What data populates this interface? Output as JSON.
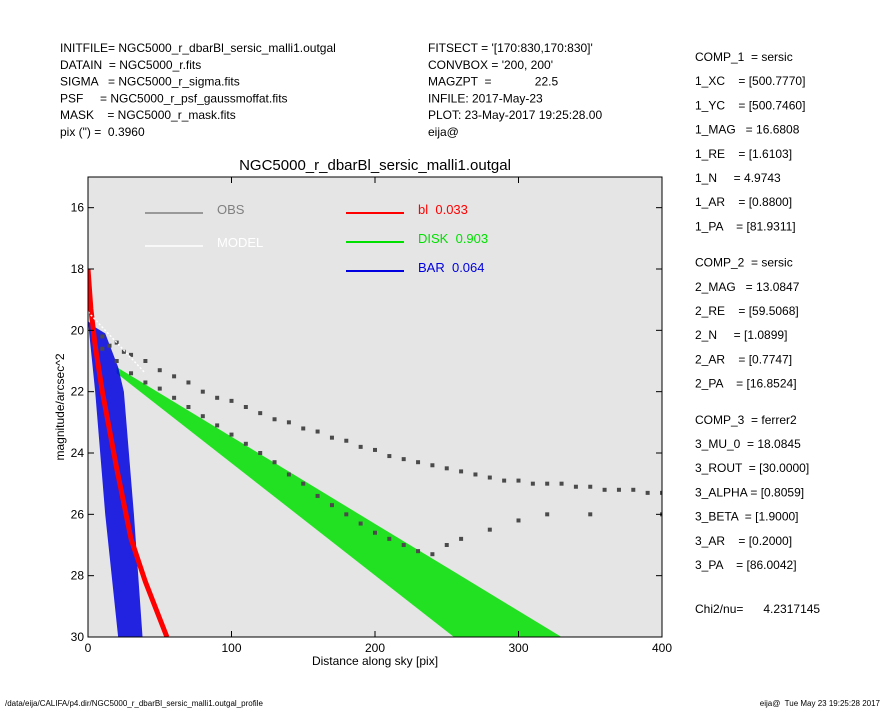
{
  "header_left": [
    "INITFILE= NGC5000_r_dbarBl_sersic_malli1.outgal",
    "DATAIN  = NGC5000_r.fits",
    "SIGMA   = NGC5000_r_sigma.fits",
    "PSF     = NGC5000_r_psf_gaussmoffat.fits",
    "MASK    = NGC5000_r_mask.fits",
    "pix (\") =  0.3960"
  ],
  "header_middle": [
    "FITSECT = '[170:830,170:830]'",
    "CONVBOX = '200, 200'",
    "MAGZPT  =             22.5",
    "INFILE: 2017-May-23",
    "PLOT: 23-May-2017 19:25:28.00",
    "eija@"
  ],
  "components": [
    [
      "COMP_1  = sersic",
      "1_XC    = [500.7770]",
      "1_YC    = [500.7460]",
      "1_MAG   = 16.6808",
      "1_RE    = [1.6103]",
      "1_N     = 4.9743",
      "1_AR    = [0.8800]",
      "1_PA    = [81.9311]"
    ],
    [
      "COMP_2  = sersic",
      "2_MAG   = 13.0847",
      "2_RE    = [59.5068]",
      "2_N     = [1.0899]",
      "2_AR    = [0.7747]",
      "2_PA    = [16.8524]"
    ],
    [
      "COMP_3  = ferrer2",
      "3_MU_0  = 18.0845",
      "3_ROUT  = [30.0000]",
      "3_ALPHA = [0.8059]",
      "3_BETA  = [1.9000]",
      "3_AR    = [0.2000]",
      "3_PA    = [86.0042]"
    ]
  ],
  "chi2": "Chi2/nu=      4.2317145",
  "footer_left": "/data/eija/CALIFA/p4.dir/NGC5000_r_dbarBl_sersic_malli1.outgal_profile",
  "footer_right": "eija@  Tue May 23 19:25:28 2017",
  "chart_data": {
    "type": "scatter",
    "title": "NGC5000_r_dbarBl_sersic_malli1.outgal",
    "xlabel": "Distance along sky [pix]",
    "ylabel": "magnitude/arcsec^2",
    "xlim": [
      0,
      400
    ],
    "ylim": [
      15,
      30
    ],
    "y_inverted": true,
    "xticks": [
      0,
      100,
      200,
      300,
      400
    ],
    "yticks": [
      16,
      18,
      20,
      22,
      24,
      26,
      28,
      30
    ],
    "background": "#e5e5e5",
    "observed": {
      "name": "OBS",
      "color": "#808080",
      "point_color": "#4a4a4a",
      "x": [
        10,
        10,
        15,
        20,
        20,
        25,
        30,
        30,
        40,
        40,
        50,
        50,
        60,
        60,
        70,
        70,
        80,
        80,
        90,
        90,
        100,
        100,
        110,
        110,
        120,
        120,
        130,
        130,
        140,
        140,
        150,
        150,
        160,
        160,
        170,
        170,
        180,
        180,
        190,
        190,
        200,
        200,
        210,
        210,
        220,
        220,
        230,
        230,
        240,
        240,
        250,
        250,
        260,
        260,
        270,
        280,
        280,
        290,
        300,
        300,
        310,
        320,
        320,
        330,
        340,
        350,
        350,
        360,
        370,
        380,
        390,
        400,
        400
      ],
      "values": [
        20.2,
        20.6,
        20.5,
        20.4,
        21.0,
        20.7,
        20.8,
        21.4,
        21.0,
        21.7,
        21.3,
        21.9,
        21.5,
        22.2,
        21.7,
        22.5,
        22.0,
        22.8,
        22.2,
        23.1,
        22.3,
        23.4,
        22.5,
        23.7,
        22.7,
        24.0,
        22.9,
        24.3,
        23.0,
        24.7,
        23.2,
        25.0,
        23.3,
        25.4,
        23.5,
        25.7,
        23.6,
        26.0,
        23.8,
        26.3,
        23.9,
        26.6,
        24.1,
        26.8,
        24.2,
        27.0,
        24.3,
        27.2,
        24.4,
        27.3,
        24.5,
        27.0,
        24.6,
        26.8,
        24.7,
        24.8,
        26.5,
        24.9,
        24.9,
        26.2,
        25.0,
        25.0,
        26.0,
        25.0,
        25.1,
        25.1,
        26.0,
        25.2,
        25.2,
        25.2,
        25.3,
        25.3,
        26.0
      ]
    },
    "model": {
      "name": "MODEL",
      "color": "#ffffff",
      "x": [
        0,
        10,
        20,
        30,
        40
      ],
      "values": [
        19.4,
        19.9,
        20.4,
        20.9,
        21.4
      ]
    },
    "bl": {
      "name": "bl",
      "fraction": "0.033",
      "color": "#ff0000",
      "x": [
        0,
        2,
        5,
        10,
        20,
        30,
        40,
        50,
        55
      ],
      "values": [
        18,
        19.3,
        20.5,
        22,
        24.5,
        26.8,
        28.2,
        29.4,
        30
      ]
    },
    "bands": [
      {
        "name": "DISK",
        "fraction": "0.903",
        "color": "#00e000",
        "x": [
          20,
          100,
          200,
          255,
          330
        ],
        "y_bright": [
          21.2,
          23.47,
          26.31,
          27.87,
          30
        ],
        "y_faint": [
          21.4,
          24.33,
          27.99,
          30,
          30
        ]
      },
      {
        "name": "BAR",
        "fraction": "0.064",
        "color": "#0000e0",
        "x": [
          0,
          5,
          12,
          21,
          25,
          32,
          38
        ],
        "y_bright": [
          19.7,
          19.9,
          20.1,
          21.2,
          22,
          26,
          30
        ],
        "y_faint": [
          19.7,
          22,
          26,
          30,
          30,
          30,
          30
        ]
      }
    ]
  }
}
